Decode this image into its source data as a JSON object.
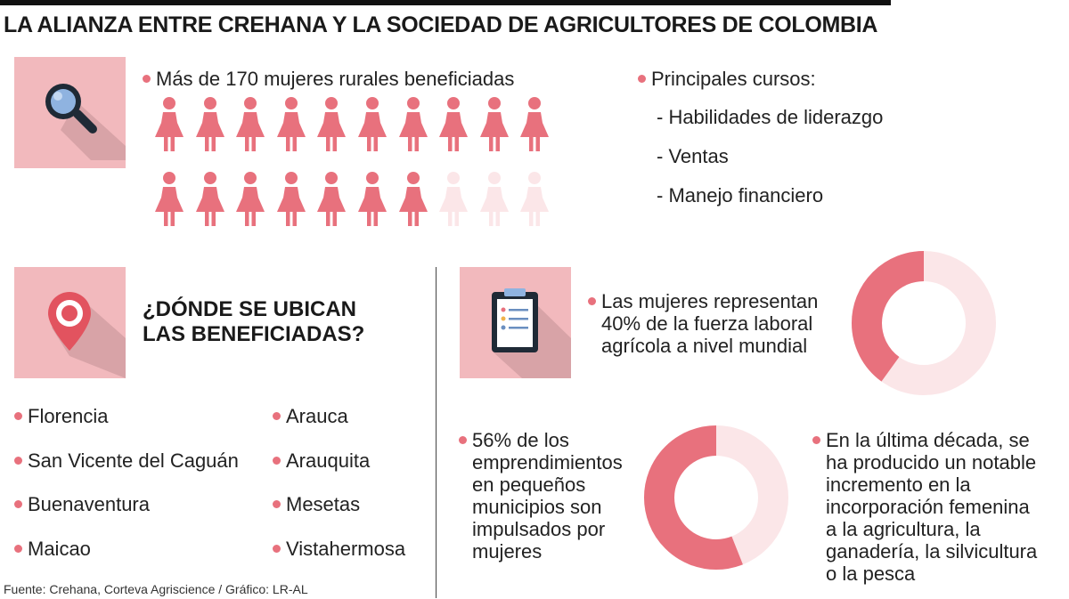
{
  "title": "LA ALIANZA ENTRE CREHANA Y LA SOCIEDAD DE AGRICULTORES DE COLOMBIA",
  "women": {
    "label": "Más de 170 mujeres rurales beneficiadas",
    "icons_total": 20,
    "icons_filled": 17,
    "filled_color": "#e8717d",
    "faded_color": "#fbe6e8"
  },
  "courses": {
    "label": "Principales cursos:",
    "items": [
      "- Habilidades de liderazgo",
      "- Ventas",
      "- Manejo financiero"
    ]
  },
  "locations": {
    "title_line1": "¿DÓNDE SE UBICAN",
    "title_line2": "LAS BENEFICIADAS?",
    "left": [
      "Florencia",
      "San Vicente del Caguán",
      "Buenaventura",
      "Maicao"
    ],
    "right": [
      "Arauca",
      "Arauquita",
      "Mesetas",
      "Vistahermosa"
    ]
  },
  "stat_labor": {
    "lines": [
      "Las mujeres representan",
      "40% de la fuerza laboral",
      "agrícola a nivel mundial"
    ],
    "fraction": 0.4
  },
  "stat_business": {
    "lines": [
      "56% de los",
      "emprendimientos",
      "en pequeños",
      "municipios son",
      "impulsados por",
      "mujeres"
    ],
    "fraction": 0.56
  },
  "stat_decade": {
    "lines": [
      "En la última década, se",
      "ha producido un notable",
      "incremento en la",
      "incorporación femenina",
      "a la agricultura, la",
      "ganadería, la silvicultura",
      "o la pesca"
    ]
  },
  "source": "Fuente: Crehana, Corteva Agriscience / Gráfico: LR-AL",
  "colors": {
    "accent": "#e8717d",
    "tile": "#f2b9bd",
    "light": "#fbe6e8"
  },
  "icons": [
    "search-icon",
    "location-pin-icon",
    "clipboard-icon"
  ]
}
